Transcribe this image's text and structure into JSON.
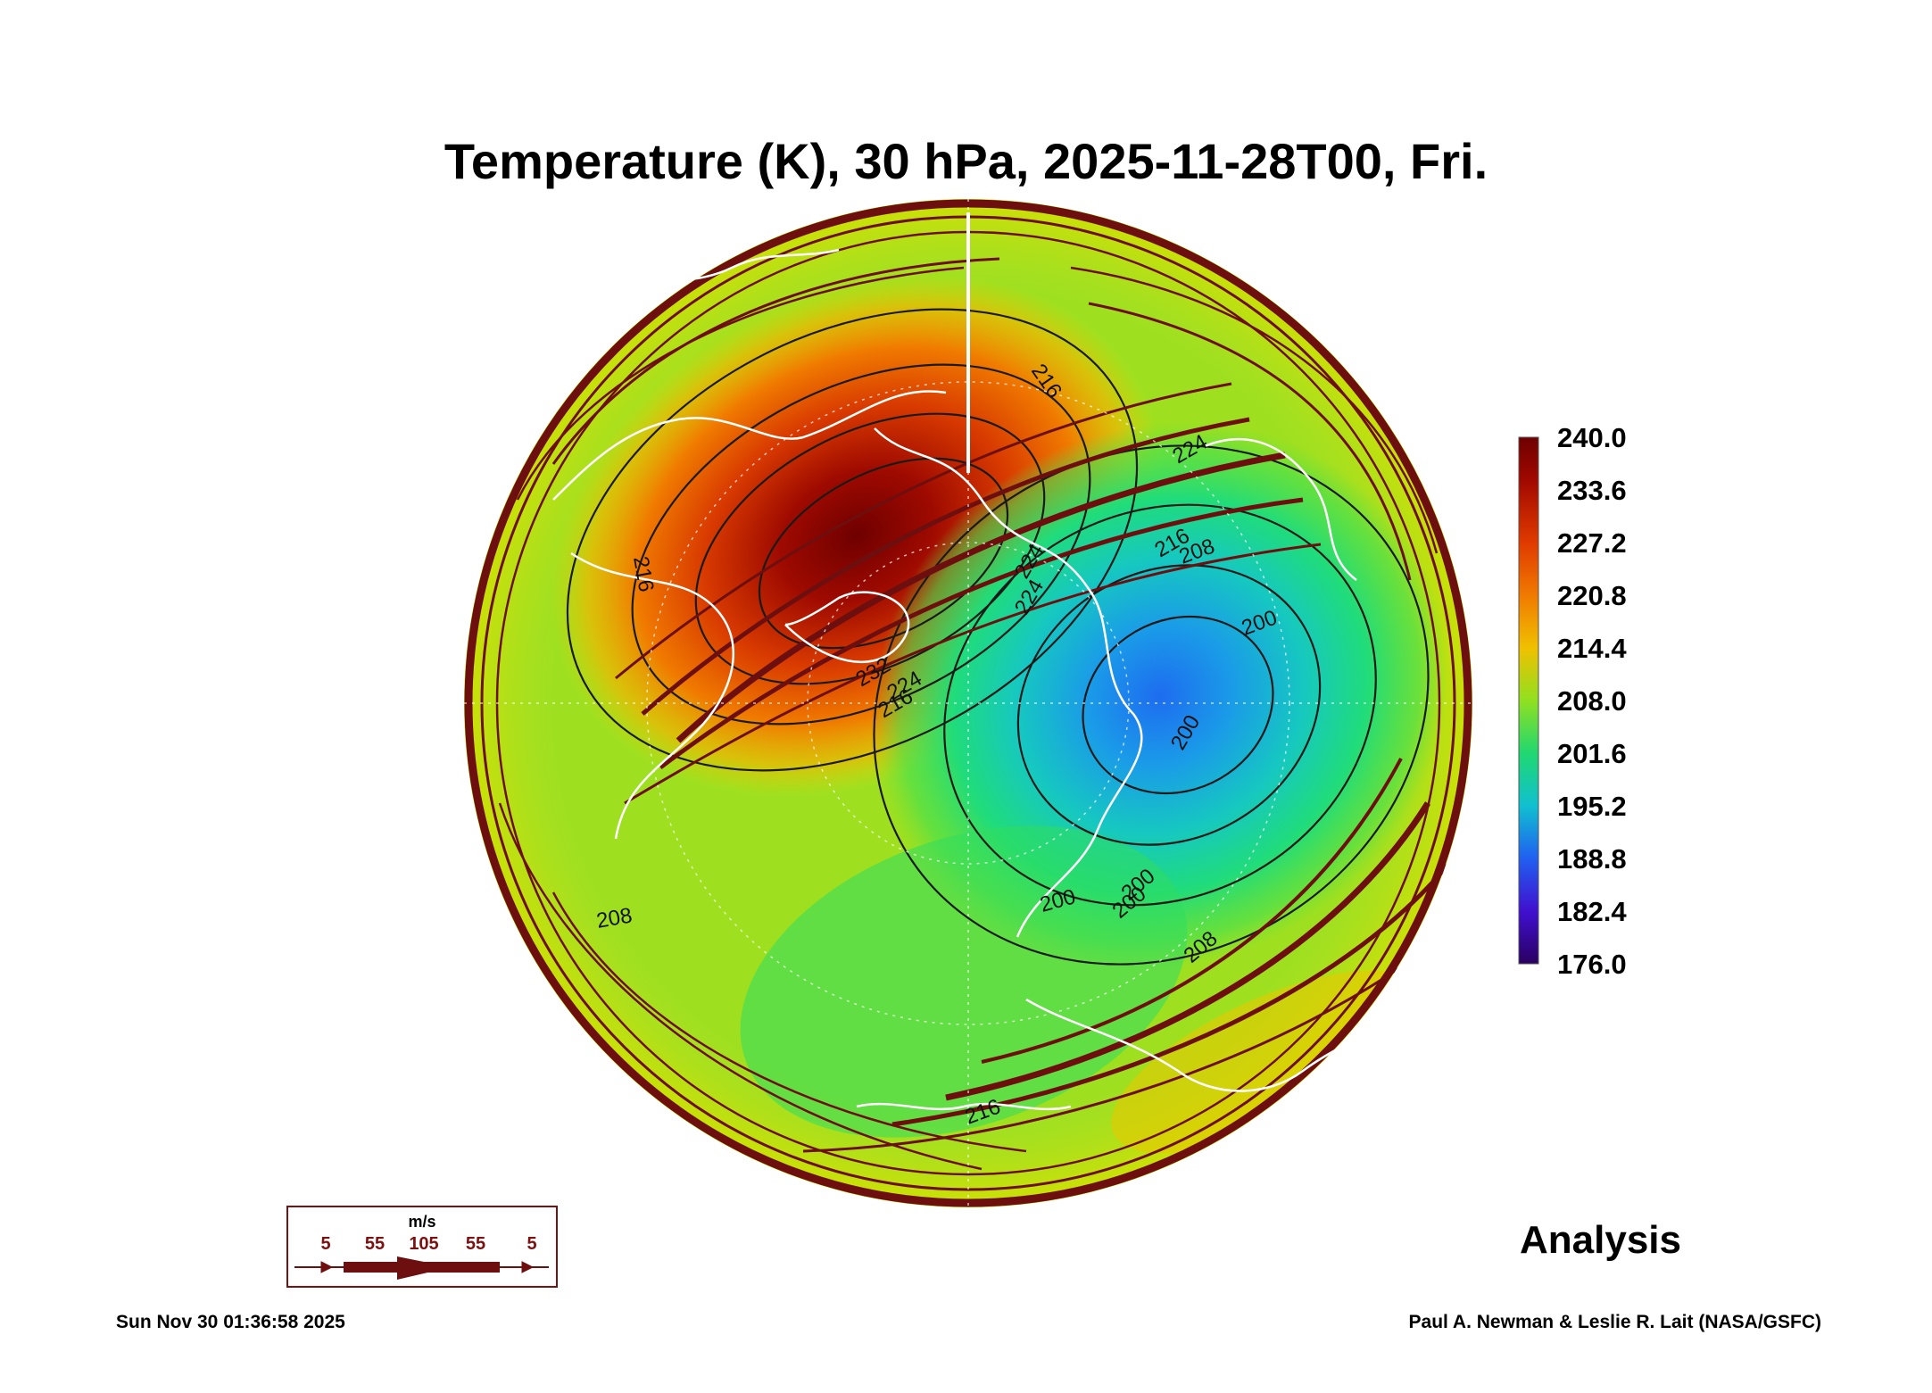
{
  "title": "Temperature (K), 30 hPa, 2025-11-28T00, Fri.",
  "colorbar": {
    "labels": [
      "240.0",
      "233.6",
      "227.2",
      "220.8",
      "214.4",
      "208.0",
      "201.6",
      "195.2",
      "188.8",
      "182.4",
      "176.0"
    ],
    "min": 176.0,
    "max": 240.0
  },
  "contour_labels": [
    "216",
    "216",
    "216",
    "224",
    "224",
    "224",
    "232",
    "208",
    "200",
    "200",
    "200",
    "200",
    "208",
    "208",
    "216",
    "216",
    "224",
    "200"
  ],
  "legend": {
    "unit": "m/s",
    "values": [
      "5",
      "55",
      "105",
      "55",
      "5"
    ]
  },
  "status": "Analysis",
  "timestamp": "Sun Nov 30 01:36:58 2025",
  "credit": "Paul A. Newman & Leslie R. Lait (NASA/GSFC)",
  "colors": {
    "stream": "#6e0f0f",
    "coast": "#ffffff",
    "contour": "#1a1a1a"
  }
}
